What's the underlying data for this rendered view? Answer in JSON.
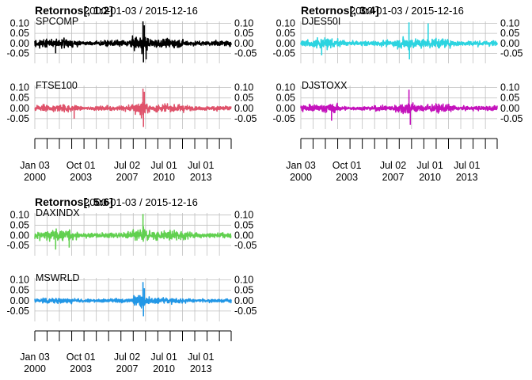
{
  "chart_data": [
    {
      "type": "line",
      "title": "Retornos[, 1:2]",
      "date_range_label": "2000-01-03 / 2015-12-16",
      "x_tick_labels": [
        {
          "line1": "Jan 03",
          "line2": "2000",
          "date": "2000-01-03"
        },
        {
          "line1": "Oct 01",
          "line2": "2003",
          "date": "2003-10-01"
        },
        {
          "line1": "Jul 02",
          "line2": "2007",
          "date": "2007-07-02"
        },
        {
          "line1": "Jul 01",
          "line2": "2010",
          "date": "2010-07-01"
        },
        {
          "line1": "Jul 01",
          "line2": "2013",
          "date": "2013-07-01"
        }
      ],
      "x_range": [
        "2000-01-03",
        "2015-12-16"
      ],
      "panels": [
        {
          "name": "SPCOMP",
          "color": "#000000",
          "ylim": [
            -0.1,
            0.11
          ],
          "yticks_left": [
            "0.10",
            "0.05",
            "0.00",
            "-0.05"
          ],
          "yticks_right": [
            "0.10",
            "0.05",
            "0.00",
            "-0.05"
          ],
          "volatility": [
            [
              2000.0,
              0.028
            ],
            [
              2002.6,
              0.03
            ],
            [
              2004.0,
              0.014
            ],
            [
              2007.5,
              0.022
            ],
            [
              2008.7,
              0.06
            ],
            [
              2009.5,
              0.03
            ],
            [
              2011.7,
              0.03
            ],
            [
              2013.0,
              0.015
            ],
            [
              2015.9,
              0.018
            ]
          ],
          "spikes": [
            [
              2008.79,
              0.11
            ],
            [
              2008.83,
              -0.095
            ],
            [
              2008.9,
              0.09
            ],
            [
              2009.05,
              -0.08
            ],
            [
              2001.7,
              -0.05
            ]
          ]
        },
        {
          "name": "FTSE100",
          "color": "#DF536B",
          "ylim": [
            -0.1,
            0.11
          ],
          "yticks_left": [
            "0.10",
            "0.05",
            "0.00",
            "-0.05"
          ],
          "yticks_right": [
            "0.10",
            "0.05",
            "0.00",
            "-0.05"
          ],
          "volatility": [
            [
              2000.0,
              0.02
            ],
            [
              2002.6,
              0.028
            ],
            [
              2004.0,
              0.01
            ],
            [
              2007.5,
              0.02
            ],
            [
              2008.7,
              0.05
            ],
            [
              2009.5,
              0.025
            ],
            [
              2011.7,
              0.025
            ],
            [
              2013.0,
              0.012
            ],
            [
              2015.9,
              0.018
            ]
          ],
          "spikes": [
            [
              2008.79,
              0.095
            ],
            [
              2008.83,
              -0.09
            ],
            [
              2008.9,
              0.08
            ],
            [
              2003.2,
              -0.05
            ]
          ]
        }
      ]
    },
    {
      "type": "line",
      "title": "Retornos[, 3:4]",
      "date_range_label": "2000-01-03 / 2015-12-16",
      "x_tick_labels": [
        {
          "line1": "Jan 03",
          "line2": "2000",
          "date": "2000-01-03"
        },
        {
          "line1": "Oct 01",
          "line2": "2003",
          "date": "2003-10-01"
        },
        {
          "line1": "Jul 02",
          "line2": "2007",
          "date": "2007-07-02"
        },
        {
          "line1": "Jul 01",
          "line2": "2010",
          "date": "2010-07-01"
        },
        {
          "line1": "Jul 01",
          "line2": "2013",
          "date": "2013-07-01"
        }
      ],
      "x_range": [
        "2000-01-03",
        "2015-12-16"
      ],
      "panels": [
        {
          "name": "DJES50I",
          "color": "#2CD4E0",
          "ylim": [
            -0.1,
            0.11
          ],
          "yticks_left": [
            "0.10",
            "0.05",
            "0.00",
            "-0.05"
          ],
          "yticks_right": [
            "0.10",
            "0.05",
            "0.00",
            "-0.05"
          ],
          "volatility": [
            [
              2000.0,
              0.025
            ],
            [
              2002.6,
              0.035
            ],
            [
              2004.0,
              0.012
            ],
            [
              2007.5,
              0.022
            ],
            [
              2008.7,
              0.055
            ],
            [
              2009.5,
              0.03
            ],
            [
              2011.7,
              0.035
            ],
            [
              2013.0,
              0.015
            ],
            [
              2015.9,
              0.02
            ]
          ],
          "spikes": [
            [
              2008.79,
              0.105
            ],
            [
              2008.83,
              -0.08
            ],
            [
              2010.35,
              0.1
            ],
            [
              2001.7,
              -0.06
            ]
          ]
        },
        {
          "name": "DJSTOXX",
          "color": "#C413BC",
          "ylim": [
            -0.1,
            0.11
          ],
          "yticks_left": [
            "0.10",
            "0.05",
            "0.00",
            "-0.05"
          ],
          "yticks_right": [
            "0.10",
            "0.05",
            "0.00",
            "-0.05"
          ],
          "volatility": [
            [
              2000.0,
              0.02
            ],
            [
              2002.6,
              0.03
            ],
            [
              2004.0,
              0.01
            ],
            [
              2007.5,
              0.02
            ],
            [
              2008.7,
              0.05
            ],
            [
              2009.5,
              0.025
            ],
            [
              2011.7,
              0.028
            ],
            [
              2013.0,
              0.012
            ],
            [
              2015.9,
              0.018
            ]
          ],
          "spikes": [
            [
              2008.79,
              0.09
            ],
            [
              2008.9,
              -0.08
            ],
            [
              2002.5,
              -0.06
            ]
          ]
        }
      ]
    },
    {
      "type": "line",
      "title": "Retornos[, 5:6]",
      "date_range_label": "2000-01-03 / 2015-12-16",
      "x_tick_labels": [
        {
          "line1": "Jan 03",
          "line2": "2000",
          "date": "2000-01-03"
        },
        {
          "line1": "Oct 01",
          "line2": "2003",
          "date": "2003-10-01"
        },
        {
          "line1": "Jul 02",
          "line2": "2007",
          "date": "2007-07-02"
        },
        {
          "line1": "Jul 01",
          "line2": "2010",
          "date": "2010-07-01"
        },
        {
          "line1": "Jul 01",
          "line2": "2013",
          "date": "2013-07-01"
        }
      ],
      "x_range": [
        "2000-01-03",
        "2015-12-16"
      ],
      "panels": [
        {
          "name": "DAXINDX",
          "color": "#61D04F",
          "ylim": [
            -0.1,
            0.11
          ],
          "yticks_left": [
            "0.10",
            "0.05",
            "0.00",
            "-0.05"
          ],
          "yticks_right": [
            "0.10",
            "0.05",
            "0.00",
            "-0.05"
          ],
          "volatility": [
            [
              2000.0,
              0.025
            ],
            [
              2002.6,
              0.04
            ],
            [
              2004.0,
              0.014
            ],
            [
              2007.5,
              0.022
            ],
            [
              2008.7,
              0.055
            ],
            [
              2009.5,
              0.03
            ],
            [
              2011.7,
              0.035
            ],
            [
              2013.0,
              0.015
            ],
            [
              2015.9,
              0.02
            ]
          ],
          "spikes": [
            [
              2008.79,
              0.105
            ],
            [
              2001.7,
              -0.07
            ],
            [
              2002.8,
              -0.06
            ]
          ]
        },
        {
          "name": "MSWRLD",
          "color": "#2297E6",
          "ylim": [
            -0.1,
            0.11
          ],
          "yticks_left": [
            "0.10",
            "0.05",
            "0.00",
            "-0.05"
          ],
          "yticks_right": [
            "0.10",
            "0.05",
            "0.00",
            "-0.05"
          ],
          "volatility": [
            [
              2000.0,
              0.015
            ],
            [
              2002.6,
              0.02
            ],
            [
              2004.0,
              0.008
            ],
            [
              2007.5,
              0.015
            ],
            [
              2008.7,
              0.045
            ],
            [
              2009.5,
              0.02
            ],
            [
              2011.7,
              0.02
            ],
            [
              2013.0,
              0.01
            ],
            [
              2015.9,
              0.012
            ]
          ],
          "spikes": [
            [
              2008.79,
              0.09
            ],
            [
              2008.83,
              -0.075
            ],
            [
              2008.9,
              0.06
            ]
          ]
        }
      ]
    }
  ]
}
